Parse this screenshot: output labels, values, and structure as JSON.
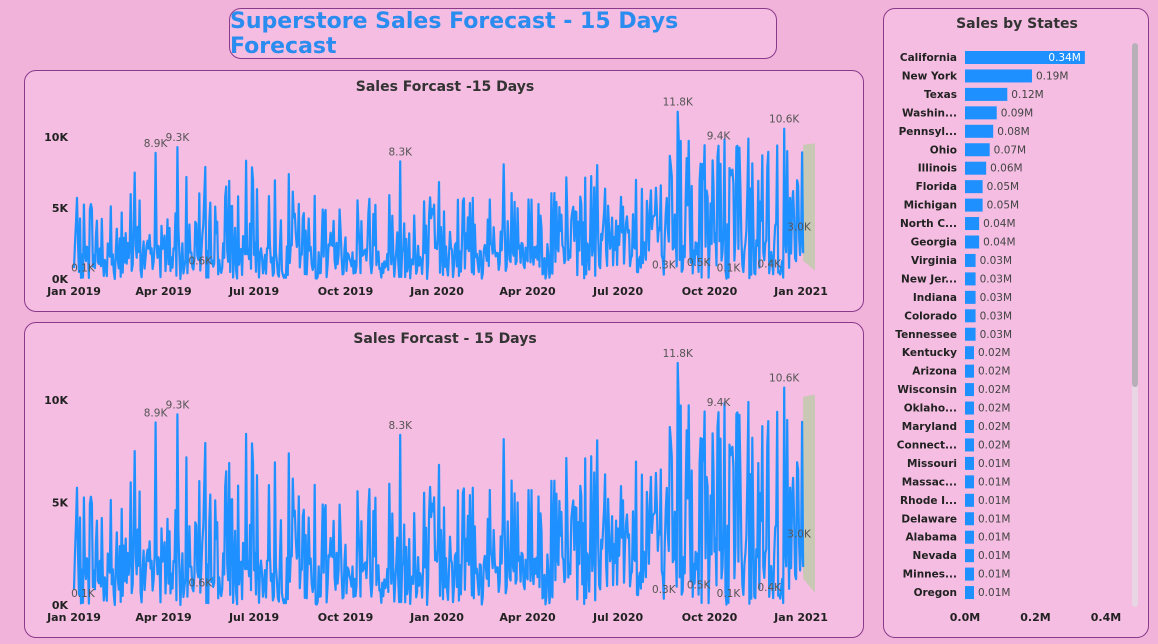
{
  "header": {
    "title": "Superstore Sales Forecast - 15 Days Forecast"
  },
  "colors": {
    "line": "#1e90ff",
    "forecast_band": "#c8c8b4",
    "bar": "#1e90ff",
    "panel_border": "#8a3a8a"
  },
  "chart_data": [
    {
      "type": "line",
      "title": "Sales Forcast -15 Days",
      "x_range": [
        "2019-01-01",
        "2021-01-15"
      ],
      "x_ticks": [
        "Jan 2019",
        "Apr 2019",
        "Jul 2019",
        "Oct 2019",
        "Jan 2020",
        "Apr 2020",
        "Jul 2020",
        "Oct 2020",
        "Jan 2021"
      ],
      "ylim": [
        0,
        11000
      ],
      "y_ticks": [
        "0K",
        "5K",
        "10K"
      ],
      "annotations": [
        {
          "x": "2019-01-10",
          "y": 0.1,
          "label": "0.1K"
        },
        {
          "x": "2019-03-24",
          "y": 8.9,
          "label": "8.9K"
        },
        {
          "x": "2019-04-15",
          "y": 9.3,
          "label": "9.3K"
        },
        {
          "x": "2019-05-08",
          "y": 0.6,
          "label": "0.6K"
        },
        {
          "x": "2019-11-25",
          "y": 8.3,
          "label": "8.3K"
        },
        {
          "x": "2020-08-16",
          "y": 0.3,
          "label": "0.3K"
        },
        {
          "x": "2020-08-30",
          "y": 11.8,
          "label": "11.8K"
        },
        {
          "x": "2020-09-20",
          "y": 0.5,
          "label": "0.5K"
        },
        {
          "x": "2020-10-10",
          "y": 9.4,
          "label": "9.4K"
        },
        {
          "x": "2020-10-20",
          "y": 0.1,
          "label": "0.1K"
        },
        {
          "x": "2020-11-30",
          "y": 0.4,
          "label": "0.4K"
        },
        {
          "x": "2020-12-15",
          "y": 10.6,
          "label": "10.6K"
        },
        {
          "x": "2020-12-30",
          "y": 3.0,
          "label": "3.0K"
        }
      ],
      "forecast": {
        "start": "2021-01-01",
        "end": "2021-01-15"
      }
    },
    {
      "type": "line",
      "title": "Sales Forcast - 15 Days",
      "x_range": [
        "2019-01-01",
        "2021-01-15"
      ],
      "x_ticks": [
        "Jan 2019",
        "Apr 2019",
        "Jul 2019",
        "Oct 2019",
        "Jan 2020",
        "Apr 2020",
        "Jul 2020",
        "Oct 2020",
        "Jan 2021"
      ],
      "ylim": [
        0,
        11800
      ],
      "y_ticks": [
        "0K",
        "5K",
        "10K"
      ],
      "annotations": [
        {
          "x": "2019-01-10",
          "y": 0.1,
          "label": "0.1K"
        },
        {
          "x": "2019-03-24",
          "y": 8.9,
          "label": "8.9K"
        },
        {
          "x": "2019-04-15",
          "y": 9.3,
          "label": "9.3K"
        },
        {
          "x": "2019-05-08",
          "y": 0.6,
          "label": "0.6K"
        },
        {
          "x": "2019-11-25",
          "y": 8.3,
          "label": "8.3K"
        },
        {
          "x": "2020-08-16",
          "y": 0.3,
          "label": "0.3K"
        },
        {
          "x": "2020-08-30",
          "y": 11.8,
          "label": "11.8K"
        },
        {
          "x": "2020-09-20",
          "y": 0.5,
          "label": "0.5K"
        },
        {
          "x": "2020-10-10",
          "y": 9.4,
          "label": "9.4K"
        },
        {
          "x": "2020-10-20",
          "y": 0.1,
          "label": "0.1K"
        },
        {
          "x": "2020-11-30",
          "y": 0.4,
          "label": "0.4K"
        },
        {
          "x": "2020-12-15",
          "y": 10.6,
          "label": "10.6K"
        },
        {
          "x": "2020-12-30",
          "y": 3.0,
          "label": "3.0K"
        }
      ],
      "forecast": {
        "start": "2021-01-01",
        "end": "2021-01-15"
      }
    },
    {
      "type": "bar",
      "orientation": "horizontal",
      "title": "Sales by States",
      "xlim": [
        0,
        0.4
      ],
      "x_ticks": [
        "0.0M",
        "0.2M",
        "0.4M"
      ],
      "categories": [
        "California",
        "New York",
        "Texas",
        "Washin...",
        "Pennsyl...",
        "Ohio",
        "Illinois",
        "Florida",
        "Michigan",
        "North C...",
        "Georgia",
        "Virginia",
        "New Jer...",
        "Indiana",
        "Colorado",
        "Tennessee",
        "Kentucky",
        "Arizona",
        "Wisconsin",
        "Oklaho...",
        "Maryland",
        "Connect...",
        "Missouri",
        "Massac...",
        "Rhode I...",
        "Delaware",
        "Alabama",
        "Nevada",
        "Minnes...",
        "Oregon"
      ],
      "values": [
        0.34,
        0.19,
        0.12,
        0.09,
        0.08,
        0.07,
        0.06,
        0.05,
        0.05,
        0.04,
        0.04,
        0.03,
        0.03,
        0.03,
        0.03,
        0.03,
        0.02,
        0.02,
        0.02,
        0.02,
        0.02,
        0.02,
        0.01,
        0.01,
        0.01,
        0.01,
        0.01,
        0.01,
        0.01,
        0.01
      ],
      "value_labels": [
        "0.34M",
        "0.19M",
        "0.12M",
        "0.09M",
        "0.08M",
        "0.07M",
        "0.06M",
        "0.05M",
        "0.05M",
        "0.04M",
        "0.04M",
        "0.03M",
        "0.03M",
        "0.03M",
        "0.03M",
        "0.03M",
        "0.02M",
        "0.02M",
        "0.02M",
        "0.02M",
        "0.02M",
        "0.02M",
        "0.01M",
        "0.01M",
        "0.01M",
        "0.01M",
        "0.01M",
        "0.01M",
        "0.01M",
        "0.01M"
      ]
    }
  ]
}
